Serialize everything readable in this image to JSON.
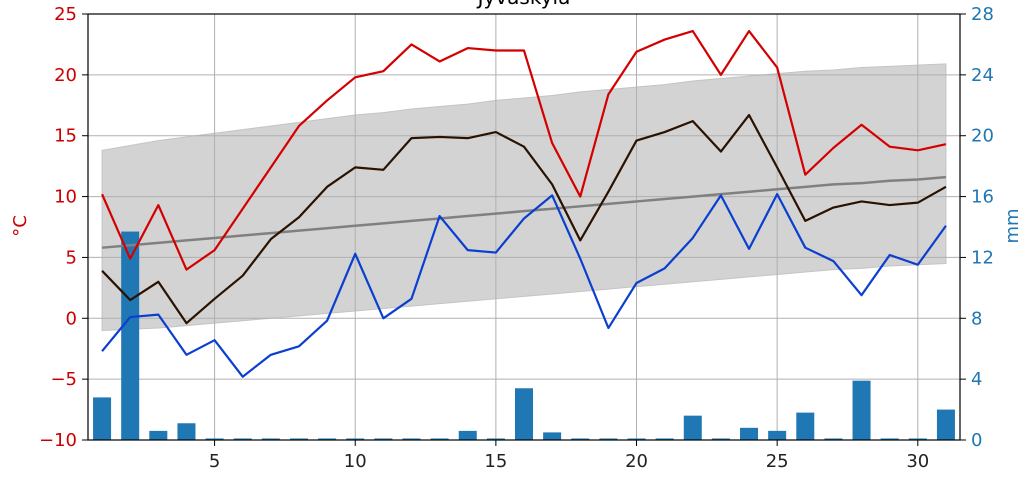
{
  "chart_data": {
    "type": "line",
    "title": "Jyväskylä",
    "xlabel": "",
    "ylabel_left": "°C",
    "ylabel_right": "mm",
    "xlim": [
      0.5,
      31.5
    ],
    "ylim_left": [
      -10,
      25
    ],
    "ylim_right": [
      0,
      28
    ],
    "grid": true,
    "x_ticks": [
      5,
      10,
      15,
      20,
      25,
      30
    ],
    "y_left_ticks": [
      -10,
      -5,
      0,
      5,
      10,
      15,
      20,
      25
    ],
    "y_right_ticks": [
      0,
      4,
      8,
      12,
      16,
      20,
      24,
      28
    ],
    "colors": {
      "max_temp": "#d40000",
      "mean_temp": "#2a1200",
      "min_temp": "#0a3fd0",
      "normal": "#808080",
      "band": "#d3d3d3",
      "bars": "#1f77b4",
      "left_axis": "#cc0000",
      "right_axis": "#1f77b4"
    },
    "x": [
      1,
      2,
      3,
      4,
      5,
      6,
      7,
      8,
      9,
      10,
      11,
      12,
      13,
      14,
      15,
      16,
      17,
      18,
      19,
      20,
      21,
      22,
      23,
      24,
      25,
      26,
      27,
      28,
      29,
      30,
      31
    ],
    "precipitation_mm": [
      2.8,
      13.7,
      0.6,
      1.1,
      0.1,
      0.1,
      0.1,
      0.1,
      0.1,
      0.1,
      0.1,
      0.1,
      0.1,
      0.6,
      0.1,
      3.4,
      0.5,
      0.1,
      0.1,
      0.1,
      0.1,
      1.6,
      0.1,
      0.8,
      0.6,
      1.8,
      0.1,
      3.9,
      0.1,
      0.1,
      2.0
    ],
    "series": [
      {
        "key": "max_temp",
        "values": [
          10.2,
          4.9,
          9.3,
          4.0,
          5.6,
          9.0,
          12.4,
          15.8,
          17.9,
          19.8,
          20.3,
          22.5,
          21.1,
          22.2,
          22.0,
          22.0,
          14.4,
          10.0,
          18.4,
          21.9,
          22.9,
          23.6,
          20.0,
          23.6,
          20.6,
          11.8,
          14.0,
          15.9,
          14.1,
          13.8,
          14.3
        ]
      },
      {
        "key": "mean_temp",
        "values": [
          3.9,
          1.5,
          3.0,
          -0.4,
          1.6,
          3.5,
          6.5,
          8.3,
          10.8,
          12.4,
          12.2,
          14.8,
          14.9,
          14.8,
          15.3,
          14.1,
          11.0,
          6.4,
          10.4,
          14.6,
          15.3,
          16.2,
          13.7,
          16.7,
          12.4,
          8.0,
          9.1,
          9.6,
          9.3,
          9.5,
          10.8
        ]
      },
      {
        "key": "min_temp",
        "values": [
          -2.7,
          0.1,
          0.3,
          -3.0,
          -1.8,
          -4.8,
          -3.0,
          -2.3,
          -0.2,
          5.3,
          0.0,
          1.6,
          8.4,
          5.6,
          5.4,
          8.2,
          10.1,
          4.9,
          -0.8,
          2.9,
          4.1,
          6.6,
          10.1,
          5.7,
          10.2,
          5.8,
          4.7,
          1.9,
          5.2,
          4.4,
          7.6
        ]
      },
      {
        "key": "normal",
        "values": [
          5.8,
          6.0,
          6.2,
          6.4,
          6.6,
          6.8,
          7.0,
          7.2,
          7.4,
          7.6,
          7.8,
          8.0,
          8.2,
          8.4,
          8.6,
          8.8,
          9.0,
          9.2,
          9.4,
          9.6,
          9.8,
          10.0,
          10.2,
          10.4,
          10.6,
          10.8,
          11.0,
          11.1,
          11.3,
          11.4,
          11.6
        ]
      },
      {
        "key": "band_upper",
        "values": [
          13.8,
          14.2,
          14.6,
          14.9,
          15.2,
          15.5,
          15.8,
          16.1,
          16.4,
          16.7,
          16.9,
          17.2,
          17.4,
          17.6,
          17.9,
          18.1,
          18.3,
          18.6,
          18.8,
          19.0,
          19.2,
          19.5,
          19.7,
          19.9,
          20.1,
          20.3,
          20.4,
          20.6,
          20.7,
          20.8,
          20.9
        ]
      },
      {
        "key": "band_lower",
        "values": [
          -1.0,
          -0.9,
          -0.8,
          -0.6,
          -0.4,
          -0.2,
          0.0,
          0.2,
          0.4,
          0.6,
          0.8,
          1.0,
          1.2,
          1.4,
          1.6,
          1.8,
          2.0,
          2.2,
          2.4,
          2.6,
          2.8,
          3.0,
          3.2,
          3.4,
          3.6,
          3.8,
          4.0,
          4.1,
          4.3,
          4.4,
          4.5
        ]
      }
    ]
  }
}
